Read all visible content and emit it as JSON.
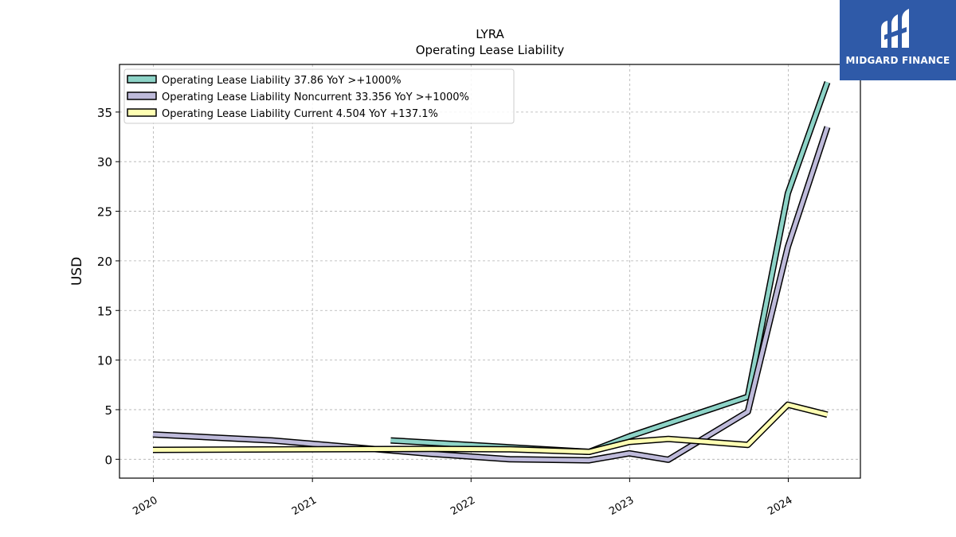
{
  "logo": {
    "text": "MIDGARD FINANCE",
    "bg_color": "#2f5aa8"
  },
  "chart_data": {
    "type": "line",
    "title": "LYRA",
    "subtitle": "Operating Lease Liability",
    "xlabel": "",
    "ylabel": "USD",
    "xlim": [
      "2019-10-15",
      "2024-06-15"
    ],
    "ylim": [
      -1.9,
      39.8
    ],
    "x_ticks": [
      "2020",
      "2021",
      "2022",
      "2023",
      "2024"
    ],
    "y_ticks": [
      0,
      5,
      10,
      15,
      20,
      25,
      30,
      35
    ],
    "grid": true,
    "legend_position": "upper-left",
    "series": [
      {
        "name": "Operating Lease Liability  37.86 YoY >+1000%",
        "color": "#8dd3c7",
        "points": [
          [
            "2021-06-30",
            1.9
          ],
          [
            "2022-09-30",
            0.75
          ],
          [
            "2022-12-31",
            2.3
          ],
          [
            "2023-09-30",
            6.3
          ],
          [
            "2023-12-31",
            26.8
          ],
          [
            "2024-03-31",
            38.0
          ]
        ]
      },
      {
        "name": "Operating Lease Liability Noncurrent  33.356 YoY >+1000%",
        "color": "#bebada",
        "points": [
          [
            "2019-12-31",
            2.5
          ],
          [
            "2020-09-30",
            1.9
          ],
          [
            "2021-09-30",
            0.55
          ],
          [
            "2022-03-31",
            0.0
          ],
          [
            "2022-09-30",
            -0.1
          ],
          [
            "2022-12-31",
            0.6
          ],
          [
            "2023-03-31",
            -0.05
          ],
          [
            "2023-09-30",
            4.8
          ],
          [
            "2023-12-31",
            21.4
          ],
          [
            "2024-03-31",
            33.5
          ]
        ]
      },
      {
        "name": "Operating Lease Liability Current  4.504 YoY +137.1%",
        "color": "#ffffb3",
        "points": [
          [
            "2019-12-31",
            0.95
          ],
          [
            "2021-09-30",
            1.05
          ],
          [
            "2022-03-31",
            1.0
          ],
          [
            "2022-09-30",
            0.75
          ],
          [
            "2022-12-31",
            1.75
          ],
          [
            "2023-03-31",
            2.05
          ],
          [
            "2023-09-30",
            1.45
          ],
          [
            "2023-12-31",
            5.5
          ],
          [
            "2024-03-31",
            4.5
          ]
        ]
      }
    ]
  }
}
